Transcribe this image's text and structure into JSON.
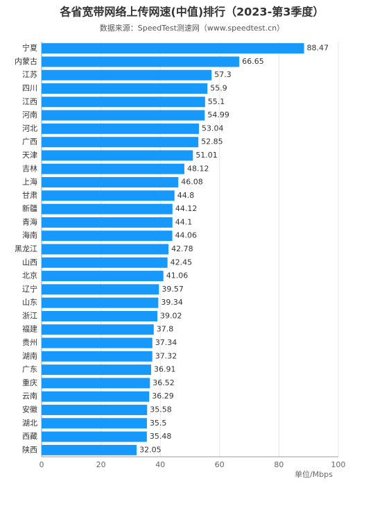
{
  "chart_data": {
    "type": "barh",
    "title": "各省宽带网络上传网速(中值)排行（2023-第3季度）",
    "subtitle": "数据来源：SpeedTest测速网（www.speedtest.cn）",
    "x_label": "单位/Mbps",
    "categories": [
      "宁夏",
      "内蒙古",
      "江苏",
      "四川",
      "江西",
      "河南",
      "河北",
      "广西",
      "天津",
      "吉林",
      "上海",
      "甘肃",
      "新疆",
      "青海",
      "海南",
      "黑龙江",
      "山西",
      "北京",
      "辽宁",
      "山东",
      "浙江",
      "福建",
      "贵州",
      "湖南",
      "广东",
      "重庆",
      "云南",
      "安徽",
      "湖北",
      "西藏",
      "陕西"
    ],
    "values": [
      88.47,
      66.65,
      57.3,
      55.9,
      55.1,
      54.99,
      53.04,
      52.85,
      51.01,
      48.12,
      46.08,
      44.8,
      44.12,
      44.1,
      44.06,
      42.78,
      42.45,
      41.06,
      39.57,
      39.34,
      39.02,
      37.8,
      37.34,
      37.32,
      36.91,
      36.52,
      36.29,
      35.58,
      35.5,
      35.48,
      32.05
    ],
    "value_labels": [
      "88.47",
      "66.65",
      "57.3",
      "55.9",
      "55.1",
      "54.99",
      "53.04",
      "52.85",
      "51.01",
      "48.12",
      "46.08",
      "44.8",
      "44.12",
      "44.1",
      "44.06",
      "42.78",
      "42.45",
      "41.06",
      "39.57",
      "39.34",
      "39.02",
      "37.8",
      "37.34",
      "37.32",
      "36.91",
      "36.52",
      "36.29",
      "35.58",
      "35.5",
      "35.48",
      "32.05"
    ],
    "color": "#1799fb",
    "xlim": [
      0,
      100
    ],
    "xticks": [
      0,
      20,
      40,
      60,
      80,
      100
    ],
    "grid": true
  }
}
